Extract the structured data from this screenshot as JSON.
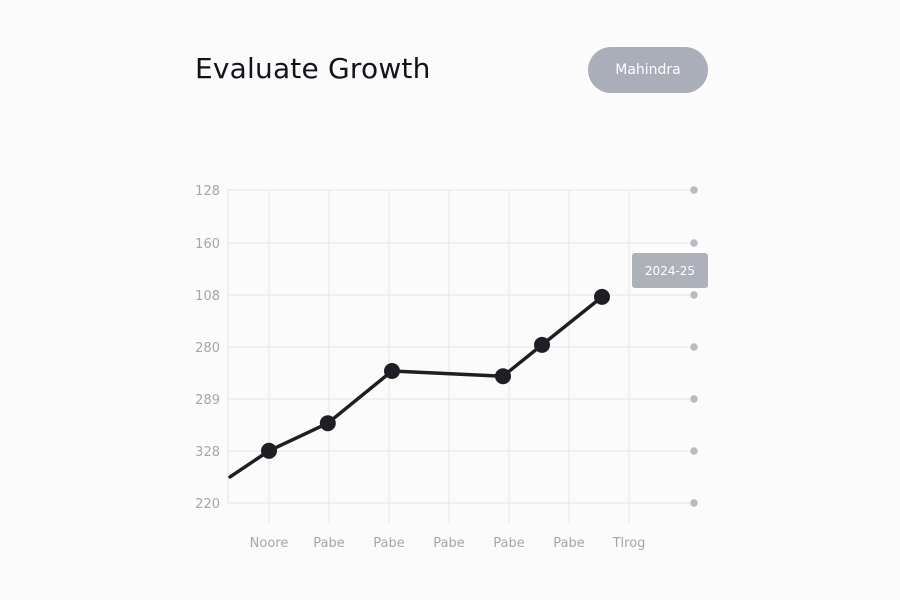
{
  "header": {
    "title": "Evaluate Growth",
    "selector_label": "Mahindra"
  },
  "tooltip": {
    "label": "2024-25"
  },
  "chart_data": {
    "type": "line",
    "title": "Evaluate Growth",
    "xlabel": "",
    "ylabel": "",
    "categories": [
      "Noore",
      "Pabe",
      "Pabe",
      "Pabe",
      "Pabe",
      "Pabe",
      "Tlrog"
    ],
    "y_tick_labels": [
      "128",
      "160",
      "108",
      "280",
      "289",
      "328",
      "220"
    ],
    "y_tick_positions": [
      7,
      6,
      5,
      4,
      3,
      2,
      1
    ],
    "ylim": [
      1,
      7
    ],
    "grid": true,
    "series": [
      {
        "x": [
          0.75,
          1.55,
          2.1,
          3.9,
          4.55,
          5.55
        ],
        "y": [
          2.5,
          3.03,
          4.53,
          4.43,
          5.03,
          5.95
        ],
        "markers": [
          false,
          true,
          true,
          true,
          true,
          true,
          true
        ],
        "x_full": [
          -0.65,
          0.0,
          0.98,
          2.05,
          3.9,
          4.55,
          5.55
        ],
        "y_full": [
          1.5,
          2.0,
          2.53,
          3.53,
          3.43,
          4.03,
          4.95
        ]
      }
    ],
    "colors": {
      "line": "#1d1f24",
      "grid": "#e4e6ea",
      "right_dots": "#b9bbbf"
    }
  }
}
